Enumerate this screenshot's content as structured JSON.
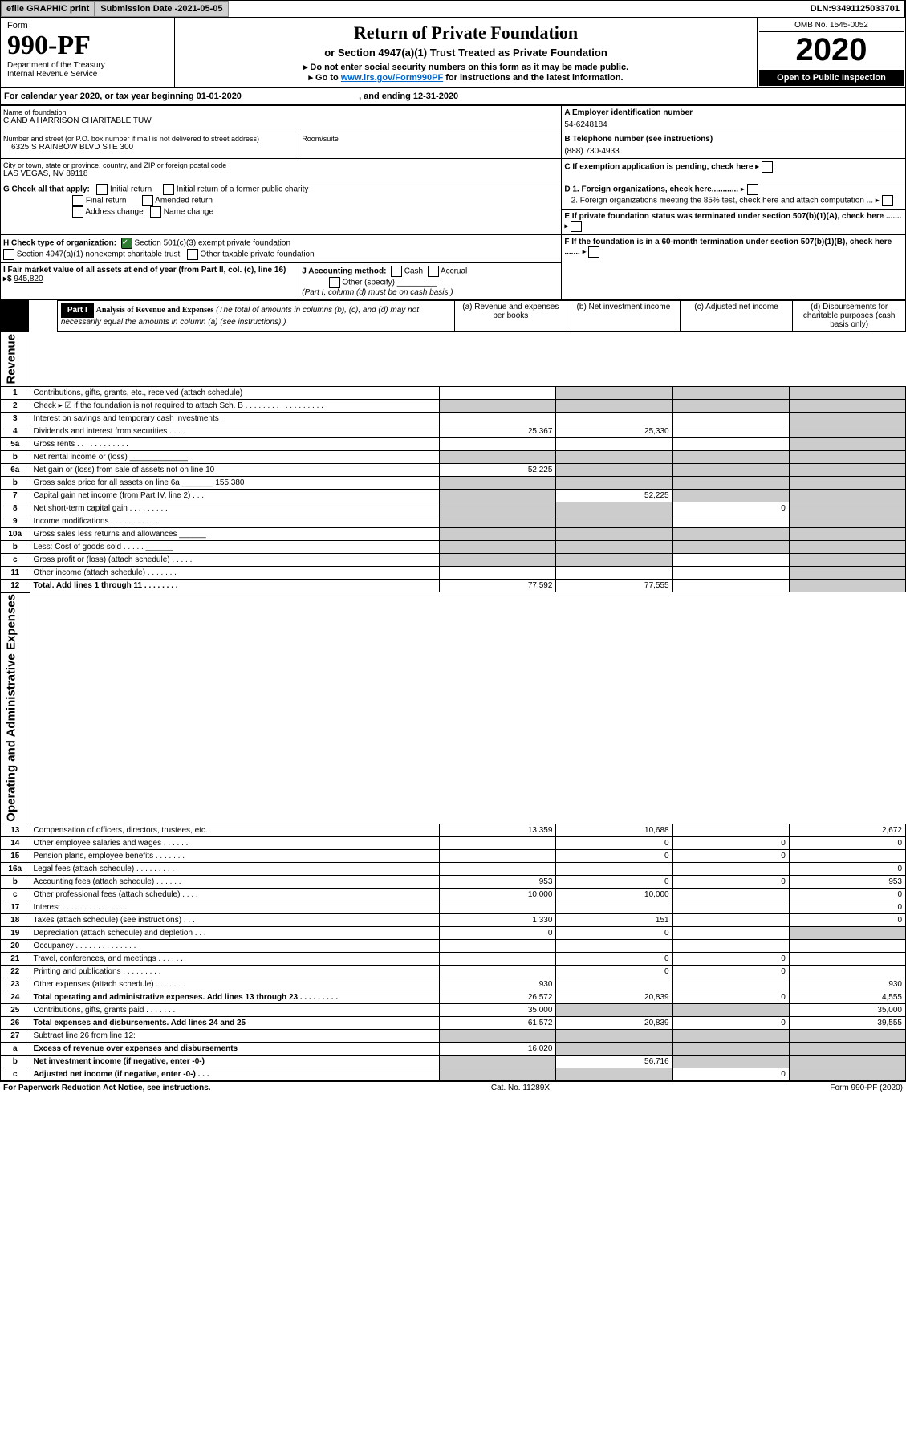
{
  "top": {
    "efile": "efile GRAPHIC print",
    "subdate_lbl": "Submission Date - ",
    "subdate": "2021-05-05",
    "dln_lbl": "DLN: ",
    "dln": "93491125033701"
  },
  "hdr": {
    "form": "Form",
    "no": "990-PF",
    "dept": "Department of the Treasury",
    "irs": "Internal Revenue Service",
    "title": "Return of Private Foundation",
    "sub": "or Section 4947(a)(1) Trust Treated as Private Foundation",
    "l1": "▸ Do not enter social security numbers on this form as it may be made public.",
    "l2": "▸ Go to ",
    "link": "www.irs.gov/Form990PF",
    "l2b": " for instructions and the latest information.",
    "omb_lbl": "OMB No. ",
    "omb": "1545-0052",
    "yr": "2020",
    "open": "Open to Public Inspection"
  },
  "cy": {
    "t1": "For calendar year 2020, or tax year beginning ",
    "t2": "01-01-2020",
    "t3": ", and ending ",
    "t4": "12-31-2020"
  },
  "A": {
    "lbl": "Name of foundation",
    "v": "C AND A HARRISON CHARITABLE TUW",
    "ein_lbl": "A Employer identification number",
    "ein": "54-6248184"
  },
  "addr": {
    "lbl": "Number and street (or P.O. box number if mail is not delivered to street address)",
    "v": "6325 S RAINBOW BLVD STE 300",
    "room": "Room/suite"
  },
  "B": {
    "lbl": "B Telephone number (see instructions)",
    "v": "(888) 730-4933"
  },
  "city": {
    "lbl": "City or town, state or province, country, and ZIP or foreign postal code",
    "v": "LAS VEGAS, NV  89118"
  },
  "C": {
    "t": "C If exemption application is pending, check here"
  },
  "G": {
    "lbl": "G Check all that apply:",
    "opts": [
      "Initial return",
      "Final return",
      "Address change",
      "Initial return of a former public charity",
      "Amended return",
      "Name change"
    ]
  },
  "D": {
    "t1": "D 1. Foreign organizations, check here............",
    "t2": "2. Foreign organizations meeting the 85% test, check here and attach computation ..."
  },
  "H": {
    "lbl": "H Check type of organization:",
    "o1": "Section 501(c)(3) exempt private foundation",
    "o2": "Section 4947(a)(1) nonexempt charitable trust",
    "o3": "Other taxable private foundation"
  },
  "E": {
    "t": "E If private foundation status was terminated under section 507(b)(1)(A), check here ......."
  },
  "I": {
    "t": "I Fair market value of all assets at end of year (from Part II, col. (c), line 16) ▸$ ",
    "v": "945,820"
  },
  "J": {
    "lbl": "J Accounting method:",
    "o1": "Cash",
    "o2": "Accrual",
    "o3": "Other (specify)",
    "sub": "(Part I, column (d) must be on cash basis.)"
  },
  "F": {
    "t": "F If the foundation is in a 60-month termination under section 507(b)(1)(B), check here ......."
  },
  "P1": {
    "tag": "Part I",
    "t": "Analysis of Revenue and Expenses",
    "sub": "(The total of amounts in columns (b), (c), and (d) may not necessarily equal the amounts in column (a) (see instructions).)",
    "ca": "(a) Revenue and expenses per books",
    "cb": "(b) Net investment income",
    "cc": "(c) Adjusted net income",
    "cd": "(d) Disbursements for charitable purposes (cash basis only)"
  },
  "rev_lbl": "Revenue",
  "oae_lbl": "Operating and Administrative Expenses",
  "rows": [
    {
      "n": "1",
      "t": "Contributions, gifts, grants, etc., received (attach schedule)",
      "a": "",
      "b": "-",
      "c": "-",
      "d": "-"
    },
    {
      "n": "2",
      "t": "Check ▸ ☑ if the foundation is not required to attach Sch. B  . . . . . . . . . . . . . . . . . .",
      "a": "-",
      "b": "-",
      "c": "-",
      "d": "-"
    },
    {
      "n": "3",
      "t": "Interest on savings and temporary cash investments",
      "a": "",
      "b": "",
      "c": "",
      "d": "-"
    },
    {
      "n": "4",
      "t": "Dividends and interest from securities  . . . .",
      "a": "25,367",
      "b": "25,330",
      "c": "",
      "d": "-"
    },
    {
      "n": "5a",
      "t": "Gross rents  . . . . . . . . . . . .",
      "a": "",
      "b": "",
      "c": "",
      "d": "-"
    },
    {
      "n": "b",
      "t": "Net rental income or (loss)  _____________",
      "a": "-",
      "b": "-",
      "c": "-",
      "d": "-"
    },
    {
      "n": "6a",
      "t": "Net gain or (loss) from sale of assets not on line 10",
      "a": "52,225",
      "b": "-",
      "c": "-",
      "d": "-"
    },
    {
      "n": "b",
      "t": "Gross sales price for all assets on line 6a _______ 155,380",
      "a": "-",
      "b": "-",
      "c": "-",
      "d": "-"
    },
    {
      "n": "7",
      "t": "Capital gain net income (from Part IV, line 2)  . . .",
      "a": "-",
      "b": "52,225",
      "c": "-",
      "d": "-"
    },
    {
      "n": "8",
      "t": "Net short-term capital gain  . . . . . . . . .",
      "a": "-",
      "b": "-",
      "c": "0",
      "d": "-"
    },
    {
      "n": "9",
      "t": "Income modifications  . . . . . . . . . . .",
      "a": "-",
      "b": "-",
      "c": "",
      "d": "-"
    },
    {
      "n": "10a",
      "t": "Gross sales less returns and allowances  ______",
      "a": "-",
      "b": "-",
      "c": "-",
      "d": "-"
    },
    {
      "n": "b",
      "t": "Less: Cost of goods sold  . . . . .  ______",
      "a": "-",
      "b": "-",
      "c": "-",
      "d": "-"
    },
    {
      "n": "c",
      "t": "Gross profit or (loss) (attach schedule)  . . . . .",
      "a": "-",
      "b": "-",
      "c": "",
      "d": "-"
    },
    {
      "n": "11",
      "t": "Other income (attach schedule)  . . . . . . .",
      "a": "",
      "b": "",
      "c": "",
      "d": "-"
    },
    {
      "n": "12",
      "t": "Total. Add lines 1 through 11  . . . . . . . .",
      "a": "77,592",
      "b": "77,555",
      "c": "",
      "d": "-",
      "bold": true
    }
  ],
  "exp": [
    {
      "n": "13",
      "t": "Compensation of officers, directors, trustees, etc.",
      "a": "13,359",
      "b": "10,688",
      "c": "",
      "d": "2,672"
    },
    {
      "n": "14",
      "t": "Other employee salaries and wages  . . . . . .",
      "a": "",
      "b": "0",
      "c": "0",
      "d": "0"
    },
    {
      "n": "15",
      "t": "Pension plans, employee benefits  . . . . . . .",
      "a": "",
      "b": "0",
      "c": "0",
      "d": ""
    },
    {
      "n": "16a",
      "t": "Legal fees (attach schedule)  . . . . . . . . .",
      "a": "",
      "b": "",
      "c": "",
      "d": "0"
    },
    {
      "n": "b",
      "t": "Accounting fees (attach schedule)  . . . . . .",
      "a": "953",
      "b": "0",
      "c": "0",
      "d": "953"
    },
    {
      "n": "c",
      "t": "Other professional fees (attach schedule)  . . . .",
      "a": "10,000",
      "b": "10,000",
      "c": "",
      "d": "0"
    },
    {
      "n": "17",
      "t": "Interest  . . . . . . . . . . . . . . .",
      "a": "",
      "b": "",
      "c": "",
      "d": "0"
    },
    {
      "n": "18",
      "t": "Taxes (attach schedule) (see instructions)  . . .",
      "a": "1,330",
      "b": "151",
      "c": "",
      "d": "0"
    },
    {
      "n": "19",
      "t": "Depreciation (attach schedule) and depletion  . . .",
      "a": "0",
      "b": "0",
      "c": "",
      "d": "-"
    },
    {
      "n": "20",
      "t": "Occupancy  . . . . . . . . . . . . . .",
      "a": "",
      "b": "",
      "c": "",
      "d": ""
    },
    {
      "n": "21",
      "t": "Travel, conferences, and meetings  . . . . . .",
      "a": "",
      "b": "0",
      "c": "0",
      "d": ""
    },
    {
      "n": "22",
      "t": "Printing and publications  . . . . . . . . .",
      "a": "",
      "b": "0",
      "c": "0",
      "d": ""
    },
    {
      "n": "23",
      "t": "Other expenses (attach schedule)  . . . . . . .",
      "a": "930",
      "b": "",
      "c": "",
      "d": "930"
    },
    {
      "n": "24",
      "t": "Total operating and administrative expenses. Add lines 13 through 23  . . . . . . . . .",
      "a": "26,572",
      "b": "20,839",
      "c": "0",
      "d": "4,555",
      "bold": true
    },
    {
      "n": "25",
      "t": "Contributions, gifts, grants paid  . . . . . . .",
      "a": "35,000",
      "b": "-",
      "c": "-",
      "d": "35,000"
    },
    {
      "n": "26",
      "t": "Total expenses and disbursements. Add lines 24 and 25",
      "a": "61,572",
      "b": "20,839",
      "c": "0",
      "d": "39,555",
      "bold": true
    },
    {
      "n": "27",
      "t": "Subtract line 26 from line 12:",
      "a": "-",
      "b": "-",
      "c": "-",
      "d": "-"
    },
    {
      "n": "a",
      "t": "Excess of revenue over expenses and disbursements",
      "a": "16,020",
      "b": "-",
      "c": "-",
      "d": "-",
      "bold": true
    },
    {
      "n": "b",
      "t": "Net investment income (if negative, enter -0-)",
      "a": "-",
      "b": "56,716",
      "c": "-",
      "d": "-",
      "bold": true
    },
    {
      "n": "c",
      "t": "Adjusted net income (if negative, enter -0-)  . . .",
      "a": "-",
      "b": "-",
      "c": "0",
      "d": "-",
      "bold": true
    }
  ],
  "foot": {
    "l": "For Paperwork Reduction Act Notice, see instructions.",
    "c": "Cat. No. 11289X",
    "r": "Form 990-PF (2020)"
  }
}
